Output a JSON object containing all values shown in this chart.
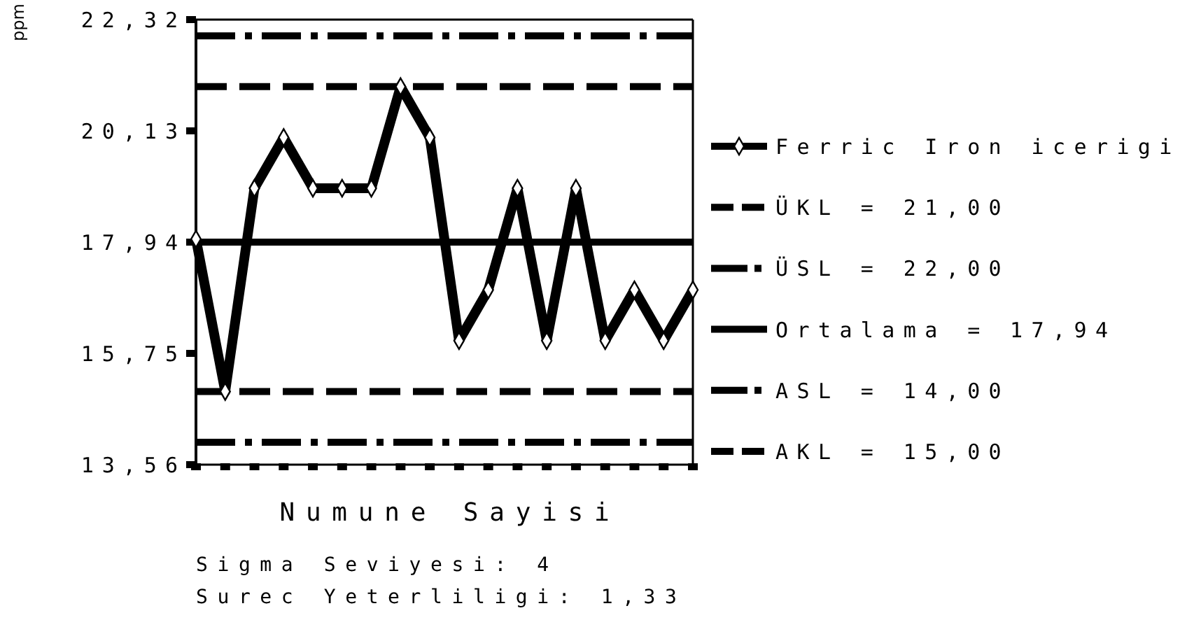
{
  "chart_data": {
    "type": "line",
    "xlabel": "Numune Sayisi",
    "ylabel": "ppm",
    "categories": [
      null,
      null,
      null,
      null,
      null,
      null,
      null,
      null,
      null,
      null,
      null,
      null,
      null,
      null,
      null,
      null,
      null,
      null
    ],
    "series": [
      {
        "name": "Ferric Iron icerigi",
        "color": "#000000",
        "values": [
          18,
          15,
          19,
          20,
          19,
          19,
          19,
          21,
          20,
          16,
          17,
          19,
          16,
          19,
          16,
          17,
          16,
          17
        ]
      }
    ],
    "ylim": [
      13.56,
      22.32
    ],
    "yticks": [
      {
        "value": 13.56,
        "label": "13,56"
      },
      {
        "value": 15.75,
        "label": "15,75"
      },
      {
        "value": 17.94,
        "label": "17,94"
      },
      {
        "value": 20.13,
        "label": "20,13"
      },
      {
        "value": 22.32,
        "label": "22,32"
      }
    ],
    "ref_lines": [
      {
        "axis": "y",
        "value": 21,
        "label": "ÜKL = 21,00",
        "color": "#000000",
        "line_style": "dashed"
      },
      {
        "axis": "y",
        "value": 22,
        "label": "ÜSL = 22,00",
        "color": "#000000",
        "line_style": "dashdot"
      },
      {
        "axis": "y",
        "value": 17.94,
        "label": "Ortalama = 17,94",
        "color": "#000000",
        "line_style": "solid"
      },
      {
        "axis": "y",
        "value": 14,
        "label": "ASL = 14,00",
        "color": "#000000",
        "line_style": "dashdot"
      },
      {
        "axis": "y",
        "value": 15,
        "label": "AKL = 15,00",
        "color": "#000000",
        "line_style": "dashed"
      }
    ],
    "annotations": [
      "Sigma Seviyesi: 4",
      "Surec Yeterliligi: 1,33"
    ],
    "legend": "right",
    "marker": "diamond",
    "line_style": "solid"
  }
}
